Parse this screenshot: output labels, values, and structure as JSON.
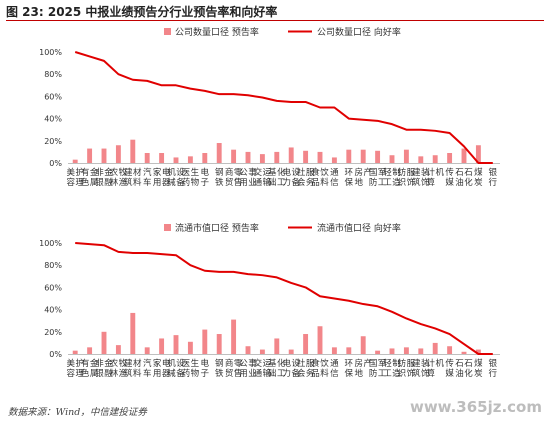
{
  "figure": {
    "title": "图 23: 2025 中报业绩预告分行业预告率和向好率",
    "source": "数据来源：Wind，中信建投证券",
    "watermark": "www.365jz.com"
  },
  "colors": {
    "bar": "#f2868a",
    "line": "#e00000",
    "axis": "#bfbfbf",
    "text": "#333333"
  },
  "chart_data": [
    {
      "type": "bar+line",
      "title": "",
      "categories": [
        "美容护理",
        "有色金属",
        "非银金融",
        "农林牧渔",
        "建筑材料",
        "汽车",
        "家用电器",
        "机械设备",
        "医药生物",
        "电子",
        "钢铁",
        "商贸零售",
        "公用事业",
        "交通运输",
        "基础化工",
        "电力设备",
        "社会服务",
        "食品饮料",
        "通信",
        "环保",
        "房地产",
        "国防军工",
        "轻工制造",
        "纺织服饰",
        "建筑装饰",
        "计算机",
        "传媒",
        "石油石化",
        "煤炭",
        "银行"
      ],
      "y_ticks": [
        "0%",
        "20%",
        "40%",
        "60%",
        "80%",
        "100%"
      ],
      "ylim": [
        0,
        100
      ],
      "series": [
        {
          "name": "公司数量口径 预告率",
          "kind": "bar",
          "values": [
            3,
            13,
            13,
            16,
            21,
            9,
            9,
            5,
            6,
            9,
            18,
            12,
            10,
            8,
            10,
            14,
            11,
            10,
            5,
            12,
            12,
            11,
            7,
            12,
            6,
            7,
            9,
            13,
            16,
            0
          ]
        },
        {
          "name": "公司数量口径 向好率",
          "kind": "line",
          "values": [
            100,
            96,
            92,
            80,
            75,
            74,
            70,
            70,
            67,
            65,
            62,
            62,
            61,
            59,
            56,
            55,
            55,
            50,
            50,
            40,
            39,
            38,
            35,
            30,
            30,
            29,
            27,
            15,
            0,
            0
          ]
        }
      ]
    },
    {
      "type": "bar+line",
      "title": "",
      "categories": [
        "美容护理",
        "有色金属",
        "非银金融",
        "农林牧渔",
        "建筑材料",
        "汽车",
        "家用电器",
        "机械设备",
        "医药生物",
        "电子",
        "钢铁",
        "商贸零售",
        "公用事业",
        "交通运输",
        "基础化工",
        "电力设备",
        "社会服务",
        "食品饮料",
        "通信",
        "环保",
        "房地产",
        "国防军工",
        "轻工制造",
        "纺织服饰",
        "建筑装饰",
        "计算机",
        "传媒",
        "石油石化",
        "煤炭",
        "银行"
      ],
      "y_ticks": [
        "0%",
        "20%",
        "40%",
        "60%",
        "80%",
        "100%"
      ],
      "ylim": [
        0,
        100
      ],
      "series": [
        {
          "name": "流通市值口径 预告率",
          "kind": "bar",
          "values": [
            3,
            6,
            20,
            8,
            37,
            6,
            14,
            17,
            11,
            22,
            18,
            31,
            7,
            4,
            14,
            4,
            18,
            25,
            6,
            6,
            16,
            3,
            5,
            6,
            5,
            10,
            7,
            2,
            4,
            0
          ]
        },
        {
          "name": "流通市值口径 向好率",
          "kind": "line",
          "values": [
            100,
            99,
            98,
            92,
            91,
            91,
            90,
            89,
            80,
            75,
            74,
            74,
            72,
            71,
            69,
            64,
            60,
            52,
            50,
            48,
            45,
            43,
            38,
            32,
            27,
            23,
            18,
            9,
            0,
            0
          ]
        }
      ]
    }
  ]
}
